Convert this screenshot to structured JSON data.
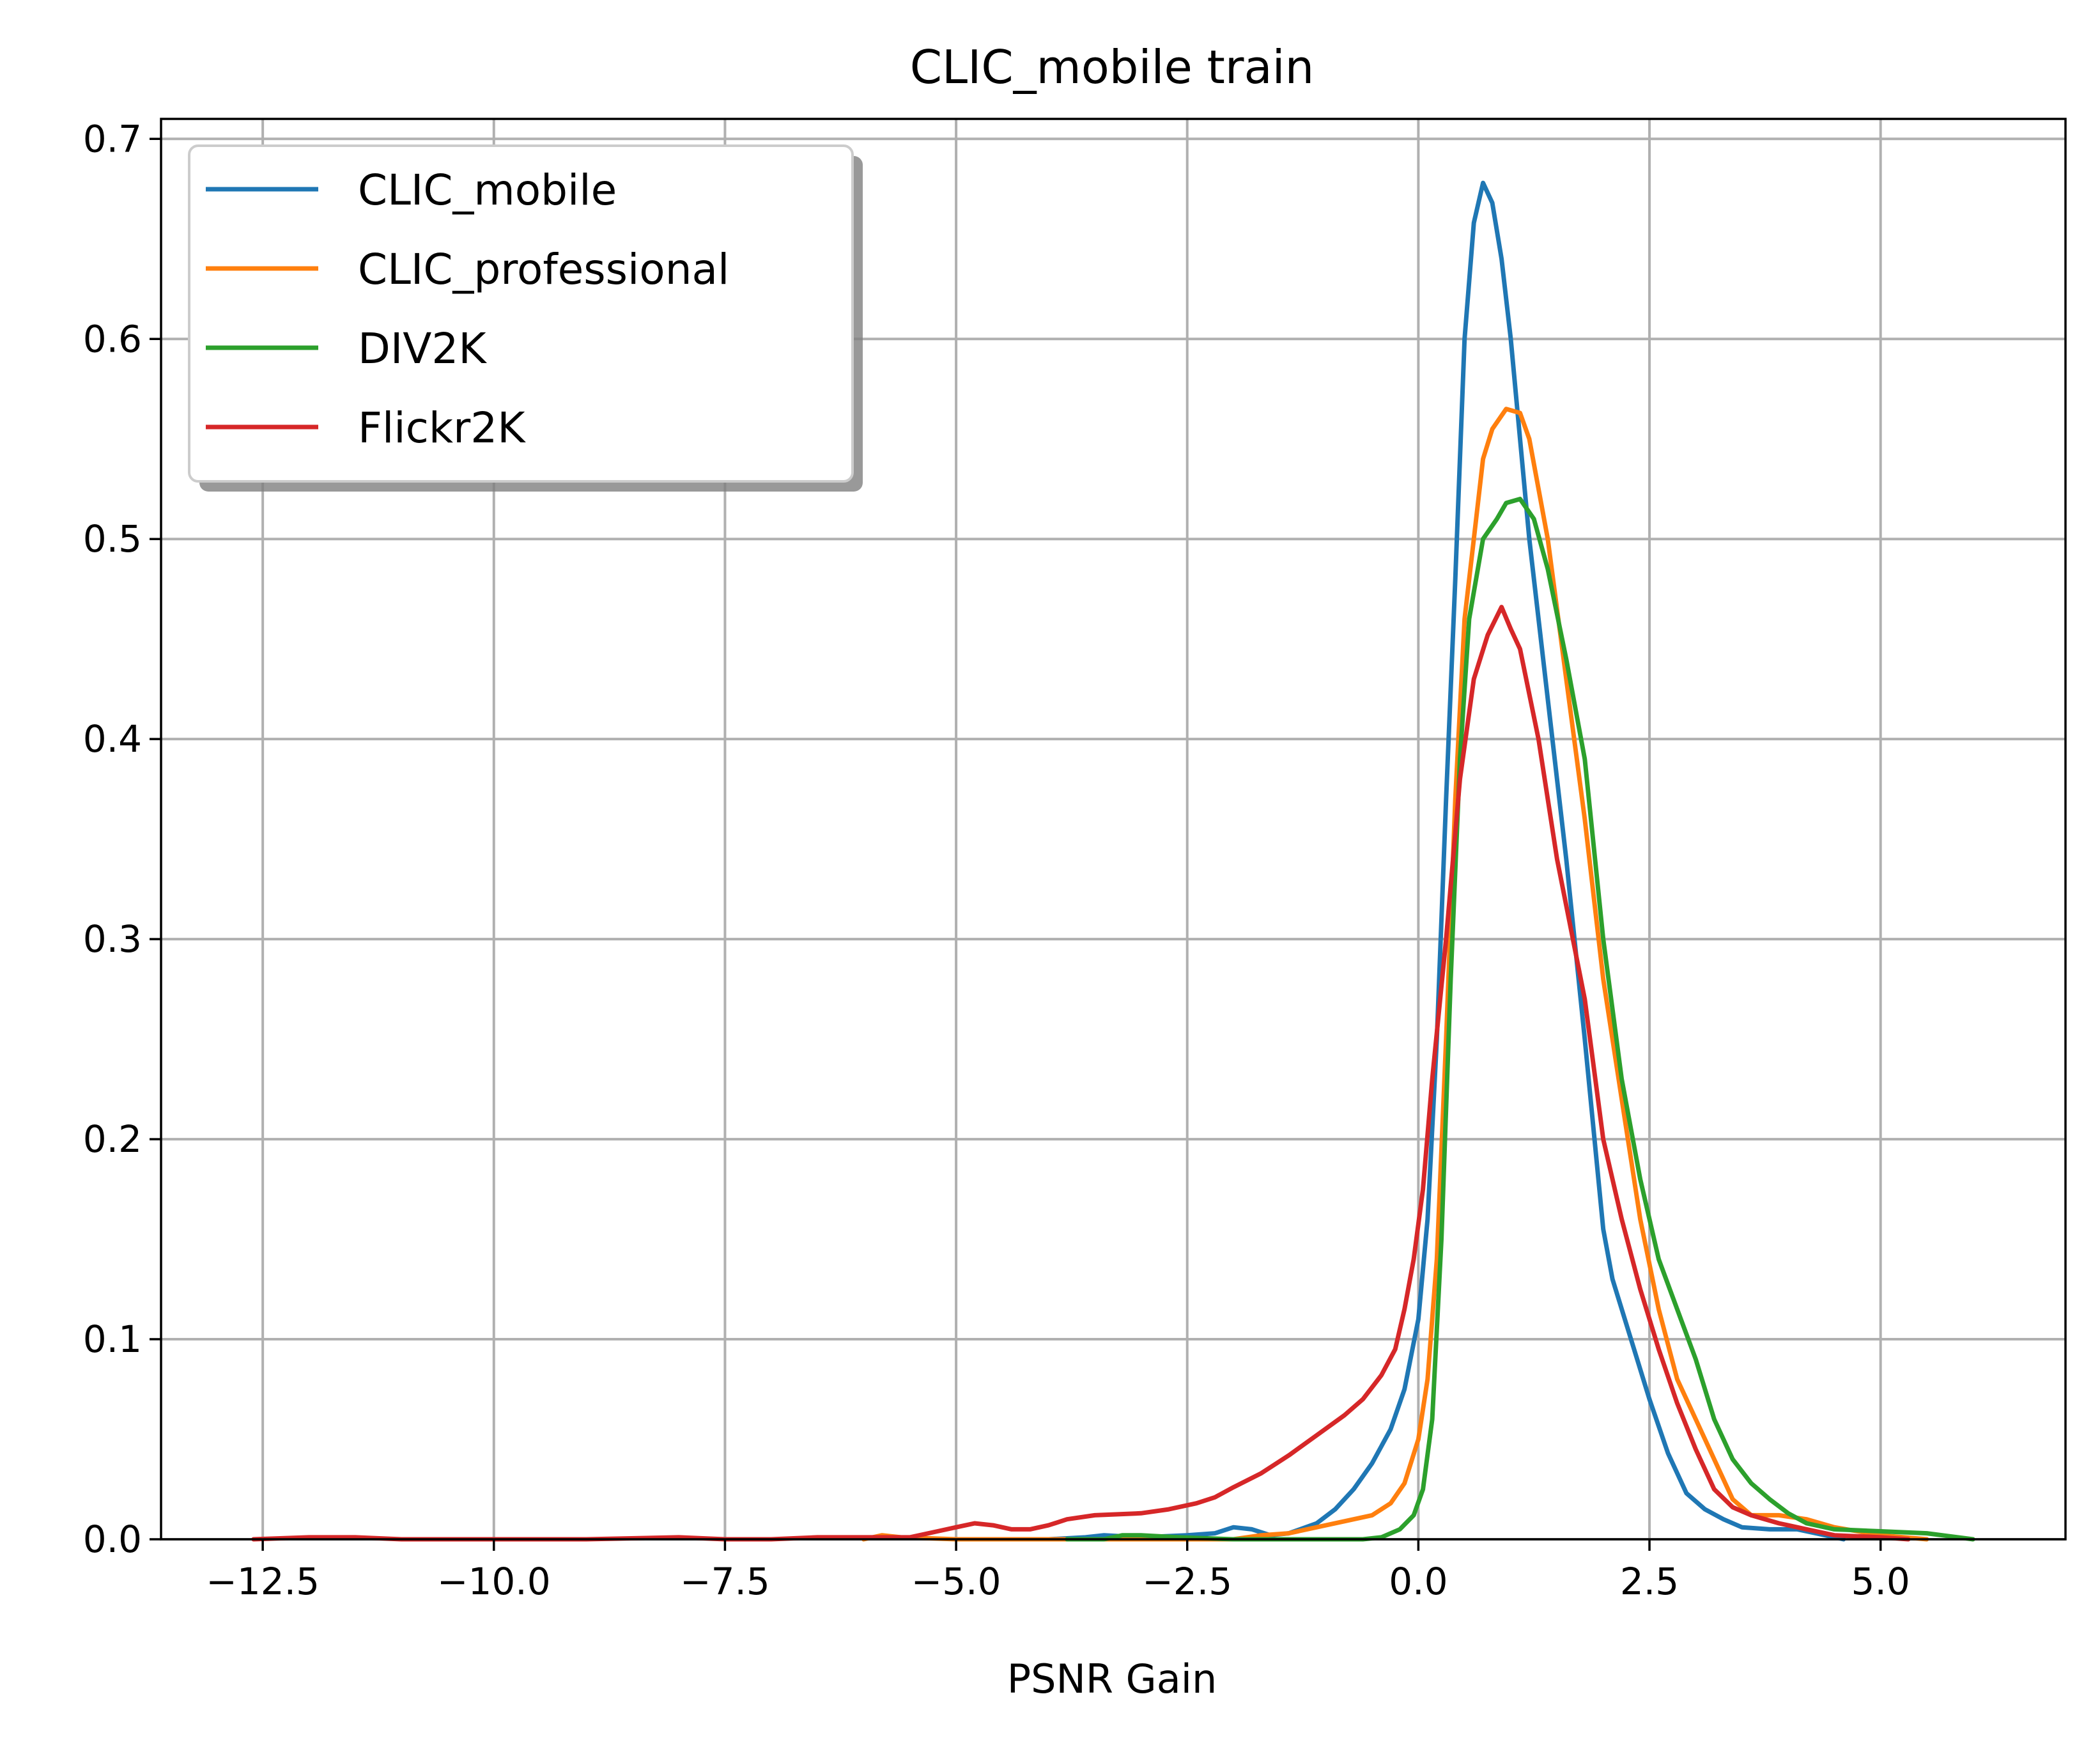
{
  "chart_data": {
    "type": "line",
    "title": "CLIC_mobile train",
    "xlabel": "PSNR Gain",
    "ylabel": "",
    "xlim": [
      -13.6,
      7.0
    ],
    "ylim": [
      0.0,
      0.71
    ],
    "grid": true,
    "legend_position": "top-left",
    "x_ticks": [
      -12.5,
      -10.0,
      -7.5,
      -5.0,
      -2.5,
      0.0,
      2.5,
      5.0
    ],
    "x_tick_labels": [
      "−12.5",
      "−10.0",
      "−7.5",
      "−5.0",
      "−2.5",
      "0.0",
      "2.5",
      "5.0"
    ],
    "y_ticks": [
      0.0,
      0.1,
      0.2,
      0.3,
      0.4,
      0.5,
      0.6,
      0.7
    ],
    "y_tick_labels": [
      "0.0",
      "0.1",
      "0.2",
      "0.3",
      "0.4",
      "0.5",
      "0.6",
      "0.7"
    ],
    "series": [
      {
        "name": "CLIC_mobile",
        "color": "#1f77b4",
        "points": [
          [
            -4.0,
            0.0
          ],
          [
            -3.6,
            0.001
          ],
          [
            -3.4,
            0.002
          ],
          [
            -3.0,
            0.001
          ],
          [
            -2.5,
            0.002
          ],
          [
            -2.2,
            0.003
          ],
          [
            -2.0,
            0.006
          ],
          [
            -1.8,
            0.005
          ],
          [
            -1.6,
            0.002
          ],
          [
            -1.4,
            0.003
          ],
          [
            -1.1,
            0.008
          ],
          [
            -0.9,
            0.015
          ],
          [
            -0.7,
            0.025
          ],
          [
            -0.5,
            0.038
          ],
          [
            -0.3,
            0.055
          ],
          [
            -0.15,
            0.075
          ],
          [
            0.0,
            0.11
          ],
          [
            0.1,
            0.16
          ],
          [
            0.2,
            0.25
          ],
          [
            0.3,
            0.37
          ],
          [
            0.4,
            0.48
          ],
          [
            0.5,
            0.6
          ],
          [
            0.6,
            0.658
          ],
          [
            0.7,
            0.678
          ],
          [
            0.8,
            0.668
          ],
          [
            0.9,
            0.64
          ],
          [
            1.0,
            0.6
          ],
          [
            1.1,
            0.55
          ],
          [
            1.2,
            0.5
          ],
          [
            1.4,
            0.42
          ],
          [
            1.6,
            0.34
          ],
          [
            1.8,
            0.25
          ],
          [
            2.0,
            0.155
          ],
          [
            2.1,
            0.13
          ],
          [
            2.3,
            0.1
          ],
          [
            2.5,
            0.07
          ],
          [
            2.7,
            0.043
          ],
          [
            2.9,
            0.023
          ],
          [
            3.1,
            0.015
          ],
          [
            3.3,
            0.01
          ],
          [
            3.5,
            0.006
          ],
          [
            3.8,
            0.005
          ],
          [
            4.1,
            0.005
          ],
          [
            4.4,
            0.002
          ],
          [
            4.6,
            0.0
          ]
        ]
      },
      {
        "name": "CLIC_professional",
        "color": "#ff7f0e",
        "points": [
          [
            -6.0,
            0.0
          ],
          [
            -5.8,
            0.002
          ],
          [
            -5.6,
            0.001
          ],
          [
            -5.0,
            0.0
          ],
          [
            -4.0,
            0.0
          ],
          [
            -3.0,
            0.0
          ],
          [
            -2.0,
            0.0
          ],
          [
            -1.7,
            0.002
          ],
          [
            -1.4,
            0.003
          ],
          [
            -1.1,
            0.006
          ],
          [
            -0.8,
            0.009
          ],
          [
            -0.5,
            0.012
          ],
          [
            -0.3,
            0.018
          ],
          [
            -0.15,
            0.028
          ],
          [
            0.0,
            0.05
          ],
          [
            0.1,
            0.08
          ],
          [
            0.2,
            0.14
          ],
          [
            0.3,
            0.25
          ],
          [
            0.4,
            0.37
          ],
          [
            0.5,
            0.46
          ],
          [
            0.6,
            0.5
          ],
          [
            0.7,
            0.54
          ],
          [
            0.8,
            0.555
          ],
          [
            0.95,
            0.565
          ],
          [
            1.1,
            0.563
          ],
          [
            1.2,
            0.55
          ],
          [
            1.4,
            0.5
          ],
          [
            1.6,
            0.43
          ],
          [
            1.8,
            0.36
          ],
          [
            2.0,
            0.28
          ],
          [
            2.2,
            0.22
          ],
          [
            2.4,
            0.16
          ],
          [
            2.6,
            0.115
          ],
          [
            2.8,
            0.08
          ],
          [
            3.0,
            0.06
          ],
          [
            3.2,
            0.04
          ],
          [
            3.4,
            0.02
          ],
          [
            3.6,
            0.012
          ],
          [
            3.9,
            0.012
          ],
          [
            4.2,
            0.01
          ],
          [
            4.5,
            0.006
          ],
          [
            5.0,
            0.002
          ],
          [
            5.5,
            0.0
          ]
        ]
      },
      {
        "name": "DIV2K",
        "color": "#2ca02c",
        "points": [
          [
            -3.8,
            0.0
          ],
          [
            -3.4,
            0.0
          ],
          [
            -3.2,
            0.002
          ],
          [
            -3.0,
            0.002
          ],
          [
            -2.6,
            0.001
          ],
          [
            -2.0,
            0.0
          ],
          [
            -1.5,
            0.0
          ],
          [
            -1.0,
            0.0
          ],
          [
            -0.6,
            0.0
          ],
          [
            -0.4,
            0.001
          ],
          [
            -0.2,
            0.005
          ],
          [
            -0.05,
            0.012
          ],
          [
            0.05,
            0.025
          ],
          [
            0.15,
            0.06
          ],
          [
            0.25,
            0.15
          ],
          [
            0.35,
            0.28
          ],
          [
            0.45,
            0.39
          ],
          [
            0.55,
            0.46
          ],
          [
            0.7,
            0.5
          ],
          [
            0.85,
            0.51
          ],
          [
            0.95,
            0.518
          ],
          [
            1.1,
            0.52
          ],
          [
            1.25,
            0.51
          ],
          [
            1.4,
            0.485
          ],
          [
            1.6,
            0.44
          ],
          [
            1.8,
            0.39
          ],
          [
            2.0,
            0.3
          ],
          [
            2.2,
            0.23
          ],
          [
            2.4,
            0.18
          ],
          [
            2.6,
            0.14
          ],
          [
            2.8,
            0.115
          ],
          [
            3.0,
            0.09
          ],
          [
            3.2,
            0.06
          ],
          [
            3.4,
            0.04
          ],
          [
            3.6,
            0.028
          ],
          [
            3.8,
            0.02
          ],
          [
            4.0,
            0.013
          ],
          [
            4.2,
            0.008
          ],
          [
            4.5,
            0.005
          ],
          [
            5.0,
            0.004
          ],
          [
            5.5,
            0.003
          ],
          [
            6.0,
            0.0
          ]
        ]
      },
      {
        "name": "Flickr2K",
        "color": "#d62728",
        "points": [
          [
            -12.6,
            0.0
          ],
          [
            -12.0,
            0.001
          ],
          [
            -11.5,
            0.001
          ],
          [
            -11.0,
            0.0
          ],
          [
            -10.0,
            0.0
          ],
          [
            -9.0,
            0.0
          ],
          [
            -8.0,
            0.001
          ],
          [
            -7.5,
            0.0
          ],
          [
            -7.0,
            0.0
          ],
          [
            -6.5,
            0.001
          ],
          [
            -6.0,
            0.001
          ],
          [
            -5.5,
            0.001
          ],
          [
            -5.2,
            0.004
          ],
          [
            -5.0,
            0.006
          ],
          [
            -4.8,
            0.008
          ],
          [
            -4.6,
            0.007
          ],
          [
            -4.4,
            0.005
          ],
          [
            -4.2,
            0.005
          ],
          [
            -4.0,
            0.007
          ],
          [
            -3.8,
            0.01
          ],
          [
            -3.5,
            0.012
          ],
          [
            -3.0,
            0.013
          ],
          [
            -2.7,
            0.015
          ],
          [
            -2.4,
            0.018
          ],
          [
            -2.2,
            0.021
          ],
          [
            -2.0,
            0.026
          ],
          [
            -1.7,
            0.033
          ],
          [
            -1.4,
            0.042
          ],
          [
            -1.1,
            0.052
          ],
          [
            -0.8,
            0.062
          ],
          [
            -0.6,
            0.07
          ],
          [
            -0.4,
            0.082
          ],
          [
            -0.25,
            0.095
          ],
          [
            -0.15,
            0.115
          ],
          [
            -0.05,
            0.14
          ],
          [
            0.05,
            0.175
          ],
          [
            0.15,
            0.23
          ],
          [
            0.3,
            0.3
          ],
          [
            0.45,
            0.38
          ],
          [
            0.6,
            0.43
          ],
          [
            0.75,
            0.452
          ],
          [
            0.9,
            0.466
          ],
          [
            1.0,
            0.455
          ],
          [
            1.1,
            0.445
          ],
          [
            1.3,
            0.4
          ],
          [
            1.5,
            0.34
          ],
          [
            1.8,
            0.27
          ],
          [
            2.0,
            0.2
          ],
          [
            2.2,
            0.16
          ],
          [
            2.4,
            0.125
          ],
          [
            2.6,
            0.095
          ],
          [
            2.8,
            0.068
          ],
          [
            3.0,
            0.045
          ],
          [
            3.2,
            0.025
          ],
          [
            3.4,
            0.016
          ],
          [
            3.6,
            0.012
          ],
          [
            3.9,
            0.008
          ],
          [
            4.2,
            0.005
          ],
          [
            4.5,
            0.002
          ],
          [
            5.0,
            0.001
          ],
          [
            5.3,
            0.0
          ]
        ]
      }
    ]
  }
}
